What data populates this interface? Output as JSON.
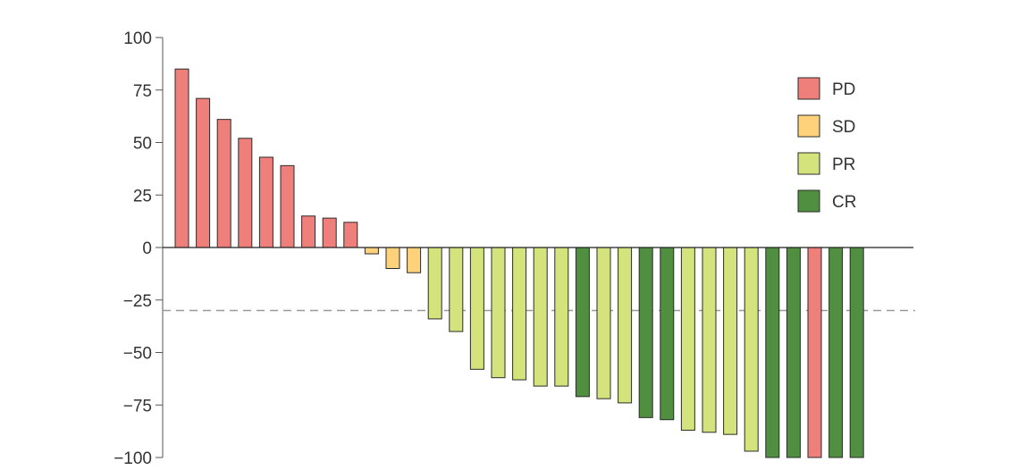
{
  "chart_data": {
    "type": "bar",
    "title": "",
    "xlabel": "",
    "ylabel": "",
    "ylim": [
      -100,
      100
    ],
    "yticks": [
      100,
      75,
      50,
      25,
      0,
      -25,
      -50,
      -75,
      -100
    ],
    "ytick_labels": [
      "100",
      "75",
      "50",
      "25",
      "0",
      "−25",
      "−50",
      "−75",
      "−100"
    ],
    "threshold": -30,
    "grid": false,
    "legend_position": "top-right",
    "categories_colors": {
      "PD": "#ef7f7a",
      "SD": "#fdd27a",
      "PR": "#d4e37c",
      "CR": "#4f8f3f"
    },
    "legend": [
      {
        "label": "PD",
        "color": "#ef7f7a"
      },
      {
        "label": "SD",
        "color": "#fdd27a"
      },
      {
        "label": "PR",
        "color": "#d4e37c"
      },
      {
        "label": "CR",
        "color": "#4f8f3f"
      }
    ],
    "bars": [
      {
        "value": 85,
        "category": "PD"
      },
      {
        "value": 71,
        "category": "PD"
      },
      {
        "value": 61,
        "category": "PD"
      },
      {
        "value": 52,
        "category": "PD"
      },
      {
        "value": 43,
        "category": "PD"
      },
      {
        "value": 39,
        "category": "PD"
      },
      {
        "value": 15,
        "category": "PD"
      },
      {
        "value": 14,
        "category": "PD"
      },
      {
        "value": 12,
        "category": "PD"
      },
      {
        "value": -3,
        "category": "SD"
      },
      {
        "value": -10,
        "category": "SD"
      },
      {
        "value": -12,
        "category": "SD"
      },
      {
        "value": -34,
        "category": "PR"
      },
      {
        "value": -40,
        "category": "PR"
      },
      {
        "value": -58,
        "category": "PR"
      },
      {
        "value": -62,
        "category": "PR"
      },
      {
        "value": -63,
        "category": "PR"
      },
      {
        "value": -66,
        "category": "PR"
      },
      {
        "value": -66,
        "category": "PR"
      },
      {
        "value": -71,
        "category": "CR"
      },
      {
        "value": -72,
        "category": "PR"
      },
      {
        "value": -74,
        "category": "PR"
      },
      {
        "value": -81,
        "category": "CR"
      },
      {
        "value": -82,
        "category": "CR"
      },
      {
        "value": -87,
        "category": "PR"
      },
      {
        "value": -88,
        "category": "PR"
      },
      {
        "value": -89,
        "category": "PR"
      },
      {
        "value": -97,
        "category": "PR"
      },
      {
        "value": -100,
        "category": "CR"
      },
      {
        "value": -100,
        "category": "CR"
      },
      {
        "value": -100,
        "category": "PD"
      },
      {
        "value": -100,
        "category": "CR"
      },
      {
        "value": -100,
        "category": "CR"
      }
    ]
  }
}
